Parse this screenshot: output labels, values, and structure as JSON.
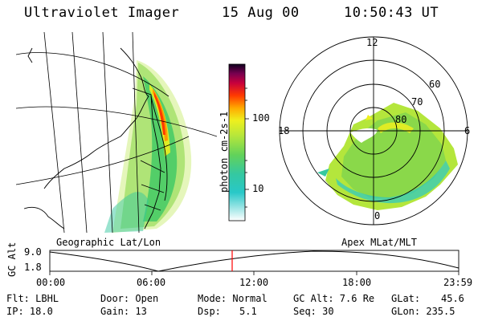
{
  "header": {
    "instrument": "Ultraviolet Imager",
    "date": "15 Aug 00",
    "time": "10:50:43 UT"
  },
  "colorbar": {
    "unit_label": "photon cm-2s-1",
    "ticks": [
      "100",
      "10"
    ]
  },
  "polar_plot": {
    "mlt_labels": [
      "12",
      "18",
      "6",
      "0"
    ],
    "lat_labels": [
      "60",
      "70",
      "80"
    ]
  },
  "panel_labels": {
    "left": "Geographic Lat/Lon",
    "right": "Apex MLat/MLT"
  },
  "timeline": {
    "ylabel": "GC Alt",
    "y_ticks": [
      "9.0",
      "1.8"
    ],
    "x_ticks": [
      "00:00",
      "06:00",
      "12:00",
      "18:00",
      "23:59"
    ],
    "marker_color": "#ff0000"
  },
  "info": {
    "flt": "Flt: LBHL",
    "ip": "IP: 18.0",
    "door": "Door: Open",
    "gain": "Gain: 13",
    "mode": "Mode: Normal",
    "dsp": "Dsp:",
    "dsp_val": "5.1",
    "gcalt": "GC Alt: 7.6 Re",
    "seq": "Seq: 30",
    "glat": "GLat:",
    "glat_val": "45.6",
    "glon": "GLon: 235.5"
  }
}
